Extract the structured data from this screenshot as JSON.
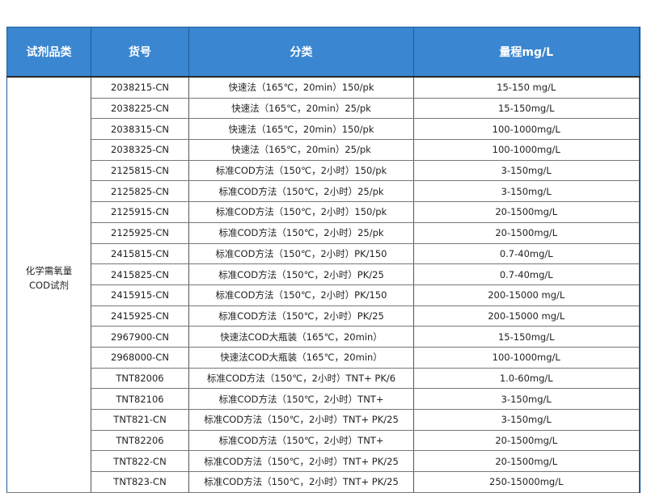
{
  "headers": [
    "试剂品类",
    "货号",
    "分类",
    "量程mg/L"
  ],
  "category": {
    "line1": "化学需氧量",
    "line2": "COD试剂"
  },
  "rows": [
    {
      "code": "2038215-CN",
      "type": "快速法（165℃，20min）150/pk",
      "range": "15-150 mg/L"
    },
    {
      "code": "2038225-CN",
      "type": "快速法（165℃，20min）25/pk",
      "range": "15-150mg/L"
    },
    {
      "code": "2038315-CN",
      "type": "快速法（165℃，20min）150/pk",
      "range": "100-1000mg/L"
    },
    {
      "code": "2038325-CN",
      "type": "快速法（165℃，20min）25/pk",
      "range": "100-1000mg/L"
    },
    {
      "code": "2125815-CN",
      "type": "标准COD方法（150℃，2小时）150/pk",
      "range": "3-150mg/L"
    },
    {
      "code": "2125825-CN",
      "type": "标准COD方法（150℃，2小时）25/pk",
      "range": "3-150mg/L"
    },
    {
      "code": "2125915-CN",
      "type": "标准COD方法（150℃，2小时）150/pk",
      "range": "20-1500mg/L"
    },
    {
      "code": "2125925-CN",
      "type": "标准COD方法（150℃，2小时）25/pk",
      "range": "20-1500mg/L"
    },
    {
      "code": "2415815-CN",
      "type": "标准COD方法（150℃，2小时）PK/150",
      "range": "0.7-40mg/L"
    },
    {
      "code": "2415825-CN",
      "type": "标准COD方法（150℃，2小时）PK/25",
      "range": "0.7-40mg/L"
    },
    {
      "code": "2415915-CN",
      "type": "标准COD方法（150℃，2小时）PK/150",
      "range": "200-15000 mg/L"
    },
    {
      "code": "2415925-CN",
      "type": "标准COD方法（150℃，2小时）PK/25",
      "range": "200-15000 mg/L"
    },
    {
      "code": "2967900-CN",
      "type": "快速法COD大瓶装（165℃，20min）",
      "range": "15-150mg/L"
    },
    {
      "code": "2968000-CN",
      "type": "快速法COD大瓶装（165℃，20min）",
      "range": "100-1000mg/L"
    },
    {
      "code": "TNT82006",
      "type": "标准COD方法（150℃，2小时）TNT+ PK/6",
      "range": "1.0-60mg/L"
    },
    {
      "code": "TNT82106",
      "type": "标准COD方法（150℃，2小时）TNT+",
      "range": "3-150mg/L"
    },
    {
      "code": "TNT821-CN",
      "type": "标准COD方法（150℃，2小时）TNT+ PK/25",
      "range": "3-150mg/L"
    },
    {
      "code": "TNT82206",
      "type": "标准COD方法（150℃，2小时）TNT+",
      "range": "20-1500mg/L"
    },
    {
      "code": "TNT822-CN",
      "type": "标准COD方法（150℃，2小时）TNT+ PK/25",
      "range": "20-1500mg/L"
    },
    {
      "code": "TNT823-CN",
      "type": "标准COD方法（150℃，2小时）TNT+ PK/25",
      "range": "250-15000mg/L"
    }
  ],
  "colors": {
    "header_bg": "#3a86d0",
    "header_text": "#ffffff"
  }
}
